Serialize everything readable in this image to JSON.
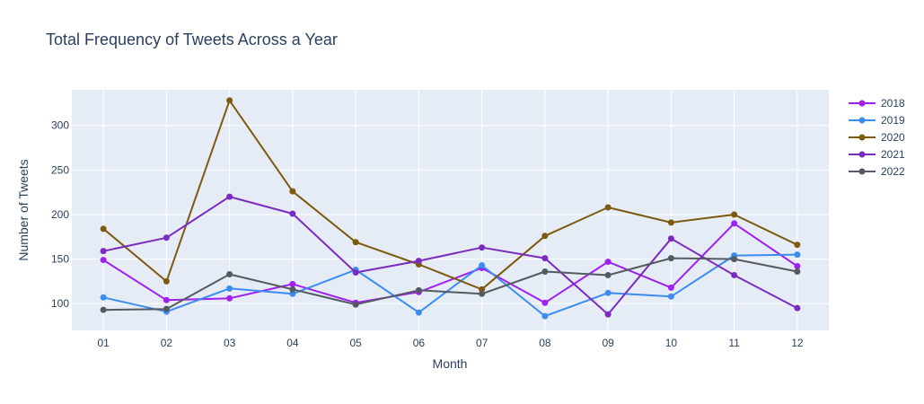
{
  "chart_data": {
    "type": "line",
    "title": "Total Frequency of Tweets Across a Year",
    "xlabel": "Month",
    "ylabel": "Number of Tweets",
    "categories": [
      "01",
      "02",
      "03",
      "04",
      "05",
      "06",
      "07",
      "08",
      "09",
      "10",
      "11",
      "12"
    ],
    "ylim": [
      70,
      340
    ],
    "yticks": [
      100,
      150,
      200,
      250,
      300
    ],
    "grid": true,
    "legend_position": "top-right",
    "series": [
      {
        "name": "2018",
        "color": "#a020f0",
        "values": [
          149,
          104,
          106,
          122,
          101,
          113,
          140,
          101,
          147,
          118,
          190,
          142
        ]
      },
      {
        "name": "2019",
        "color": "#3c8cf0",
        "values": [
          107,
          91,
          117,
          111,
          138,
          90,
          143,
          86,
          112,
          108,
          154,
          155
        ]
      },
      {
        "name": "2020",
        "color": "#7d5a0f",
        "values": [
          184,
          125,
          328,
          226,
          169,
          144,
          116,
          176,
          208,
          191,
          200,
          166
        ]
      },
      {
        "name": "2021",
        "color": "#7b2bbf",
        "values": [
          159,
          174,
          220,
          201,
          135,
          148,
          163,
          151,
          88,
          173,
          132,
          95
        ]
      },
      {
        "name": "2022",
        "color": "#555a60",
        "values": [
          93,
          94,
          133,
          116,
          99,
          115,
          111,
          136,
          132,
          151,
          150,
          136
        ]
      }
    ]
  }
}
